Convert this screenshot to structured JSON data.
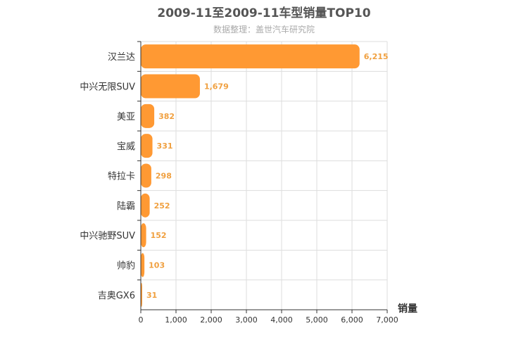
{
  "chart_data": {
    "type": "bar",
    "orientation": "horizontal",
    "title": "2009-11至2009-11车型销量TOP10",
    "subtitle": "数据整理：盖世汽车研究院",
    "xlabel": "销量",
    "ylabel": "",
    "xlim": [
      0,
      7000
    ],
    "xticks": [
      0,
      1000,
      2000,
      3000,
      4000,
      5000,
      6000,
      7000
    ],
    "xtick_labels": [
      "0",
      "1,000",
      "2,000",
      "3,000",
      "4,000",
      "5,000",
      "6,000",
      "7,000"
    ],
    "grid": true,
    "categories": [
      "汉兰达",
      "中兴无限SUV",
      "美亚",
      "宝威",
      "特拉卡",
      "陆霸",
      "中兴驰野SUV",
      "帅豹",
      "吉奥GX6"
    ],
    "values": [
      6215,
      1679,
      382,
      331,
      298,
      252,
      152,
      103,
      31
    ],
    "value_labels": [
      "6,215",
      "1,679",
      "382",
      "331",
      "298",
      "252",
      "152",
      "103",
      "31"
    ],
    "bar_color": "#ff9933"
  }
}
